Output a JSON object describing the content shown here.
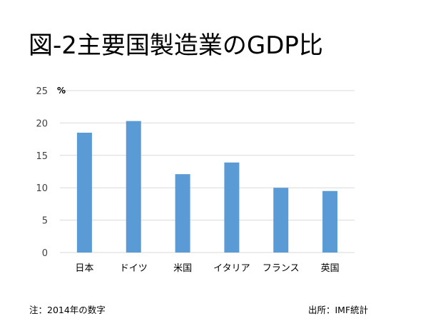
{
  "title": "図-2主要国製造業のGDP比",
  "footnote_left": "注：2014年の数字",
  "footnote_right": "出所：IMF統計",
  "chart_data": {
    "type": "bar",
    "title": "図-2主要国製造業のGDP比",
    "xlabel": "",
    "ylabel": "",
    "y_unit": "%",
    "ylim": [
      0,
      25
    ],
    "yticks": [
      0,
      5,
      10,
      15,
      20,
      25
    ],
    "grid": true,
    "categories": [
      "日本",
      "ドイツ",
      "米国",
      "イタリア",
      "フランス",
      "英国"
    ],
    "values": [
      18.5,
      20.3,
      12.1,
      13.9,
      10.0,
      9.5
    ],
    "bar_color": "#5b9bd5",
    "grid_color": "#d9d9d9"
  }
}
